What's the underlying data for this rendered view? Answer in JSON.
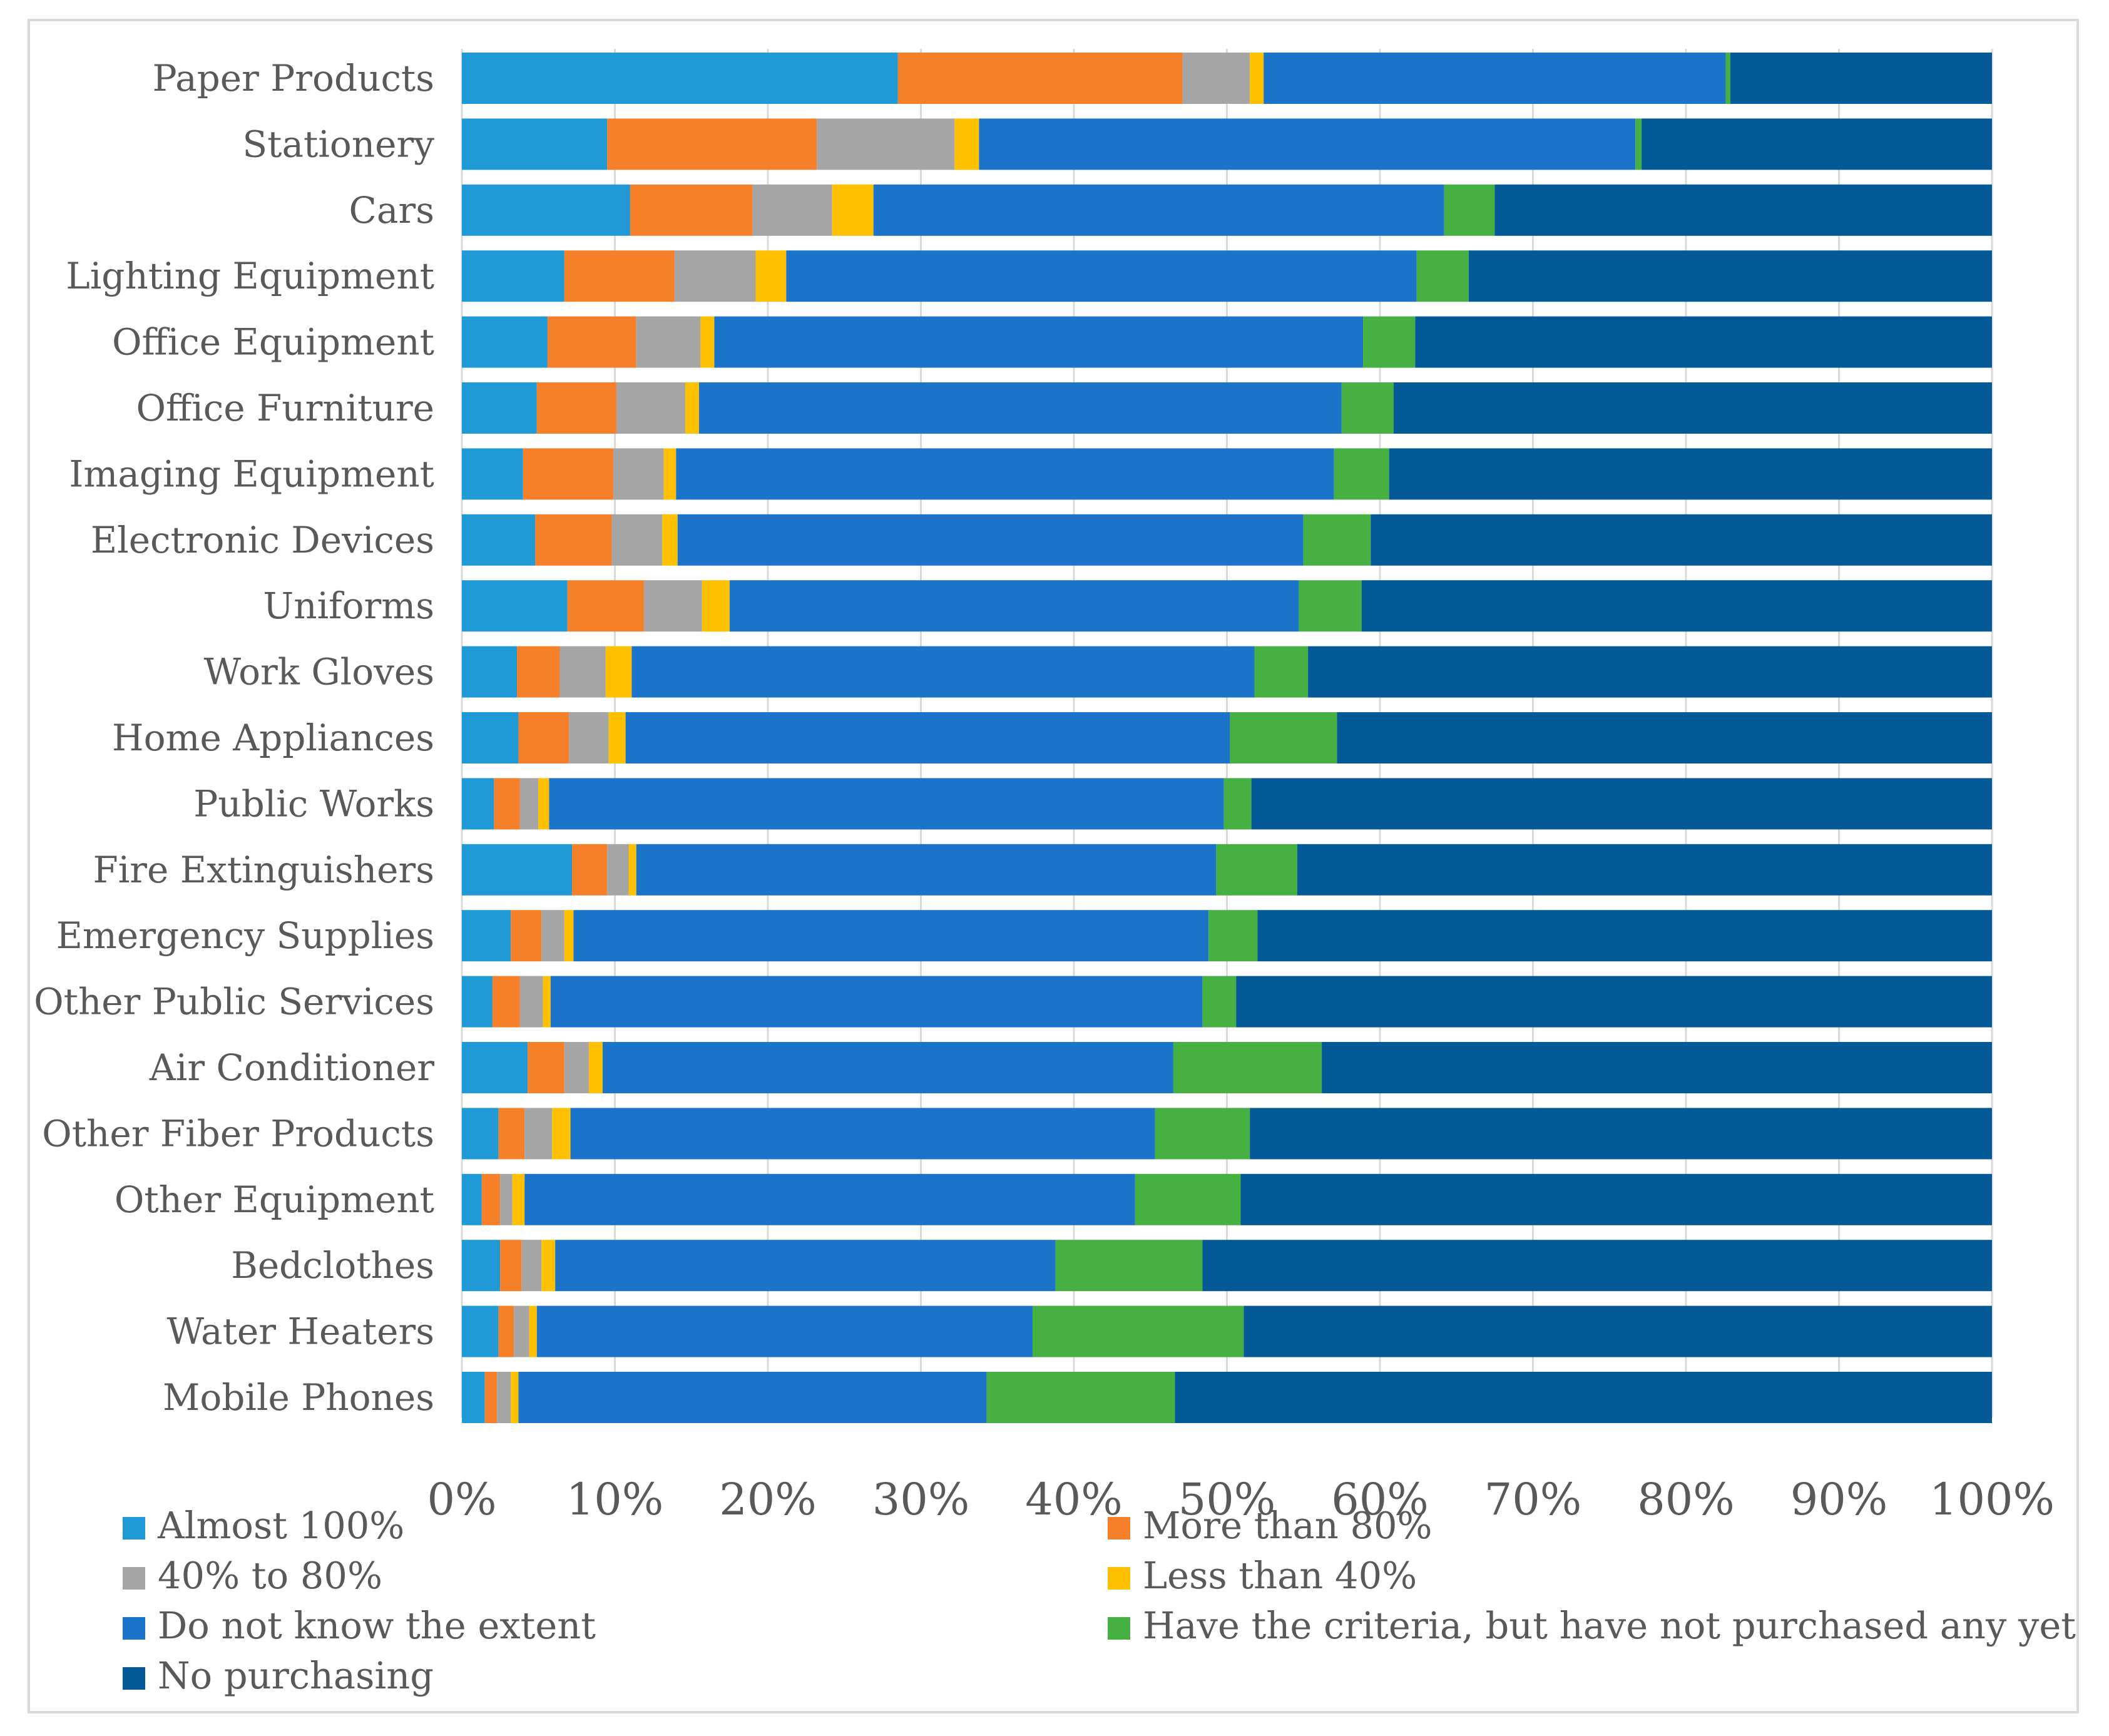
{
  "chart_data": {
    "type": "bar",
    "orientation": "horizontal",
    "stacked": "percent",
    "title": "",
    "xlabel": "",
    "ylabel": "",
    "xlim": [
      0,
      100
    ],
    "x_ticks": [
      "0%",
      "10%",
      "20%",
      "30%",
      "40%",
      "50%",
      "60%",
      "70%",
      "80%",
      "90%",
      "100%"
    ],
    "grid": "vertical",
    "legend_position": "bottom",
    "categories": [
      "Paper Products",
      "Stationery",
      "Cars",
      "Lighting Equipment",
      "Office Equipment",
      "Office Furniture",
      "Imaging Equipment",
      "Electronic Devices",
      "Uniforms",
      "Work Gloves",
      "Home Appliances",
      "Public Works",
      "Fire Extinguishers",
      "Emergency Supplies",
      "Other Public Services",
      "Air Conditioner",
      "Other Fiber Products",
      "Other Equipment",
      "Bedclothes",
      "Water Heaters",
      "Mobile Phones"
    ],
    "series": [
      {
        "name": "Almost 100%",
        "color": "#1f9ad6",
        "values": [
          28.5,
          9.5,
          11.0,
          6.7,
          5.6,
          4.9,
          4.0,
          4.8,
          6.9,
          3.6,
          3.7,
          2.1,
          7.2,
          3.2,
          2.0,
          4.3,
          2.4,
          1.3,
          2.5,
          2.4,
          1.5
        ]
      },
      {
        "name": "More than 80%",
        "color": "#f67f2a",
        "values": [
          18.6,
          13.7,
          8.0,
          7.2,
          5.8,
          5.2,
          5.9,
          5.0,
          5.0,
          2.8,
          3.3,
          1.7,
          2.3,
          2.0,
          1.8,
          2.4,
          1.7,
          1.2,
          1.4,
          1.0,
          0.8
        ]
      },
      {
        "name": "40% to 80%",
        "color": "#a5a5a5",
        "values": [
          4.4,
          9.0,
          5.2,
          5.3,
          4.2,
          4.5,
          3.3,
          3.3,
          3.8,
          3.0,
          2.6,
          1.2,
          1.4,
          1.5,
          1.5,
          1.6,
          1.8,
          0.8,
          1.3,
          1.0,
          0.9
        ]
      },
      {
        "name": "Less than 40%",
        "color": "#ffc000",
        "values": [
          0.9,
          1.6,
          2.7,
          2.0,
          0.9,
          0.9,
          0.8,
          1.0,
          1.8,
          1.7,
          1.1,
          0.7,
          0.5,
          0.6,
          0.5,
          0.9,
          1.2,
          0.8,
          0.9,
          0.5,
          0.5
        ]
      },
      {
        "name": "Do not know the extent",
        "color": "#1b74c9",
        "values": [
          30.2,
          42.9,
          37.3,
          41.2,
          42.4,
          42.0,
          43.0,
          40.9,
          37.2,
          40.7,
          39.5,
          44.1,
          37.9,
          41.5,
          42.6,
          37.3,
          38.2,
          39.9,
          32.7,
          32.4,
          30.6
        ]
      },
      {
        "name": "Have the criteria, but have not purchased any yet",
        "color": "#47b043",
        "values": [
          0.3,
          0.4,
          3.3,
          3.4,
          3.4,
          3.4,
          3.6,
          4.4,
          4.1,
          3.5,
          7.0,
          1.8,
          5.3,
          3.2,
          2.2,
          9.7,
          6.2,
          6.9,
          9.6,
          13.8,
          12.3
        ]
      },
      {
        "name": "No purchasing",
        "color": "#045a96",
        "values": [
          17.1,
          22.9,
          32.5,
          34.2,
          37.7,
          39.1,
          39.4,
          40.6,
          41.2,
          44.7,
          42.8,
          48.4,
          45.4,
          48.0,
          49.4,
          43.8,
          48.5,
          49.1,
          51.6,
          48.9,
          53.4
        ]
      }
    ],
    "legend": [
      "Almost 100%",
      "More than 80%",
      "40% to 80%",
      "Less than 40%",
      "Do not know the extent",
      "Have the criteria, but have not purchased any yet",
      "No purchasing"
    ]
  }
}
